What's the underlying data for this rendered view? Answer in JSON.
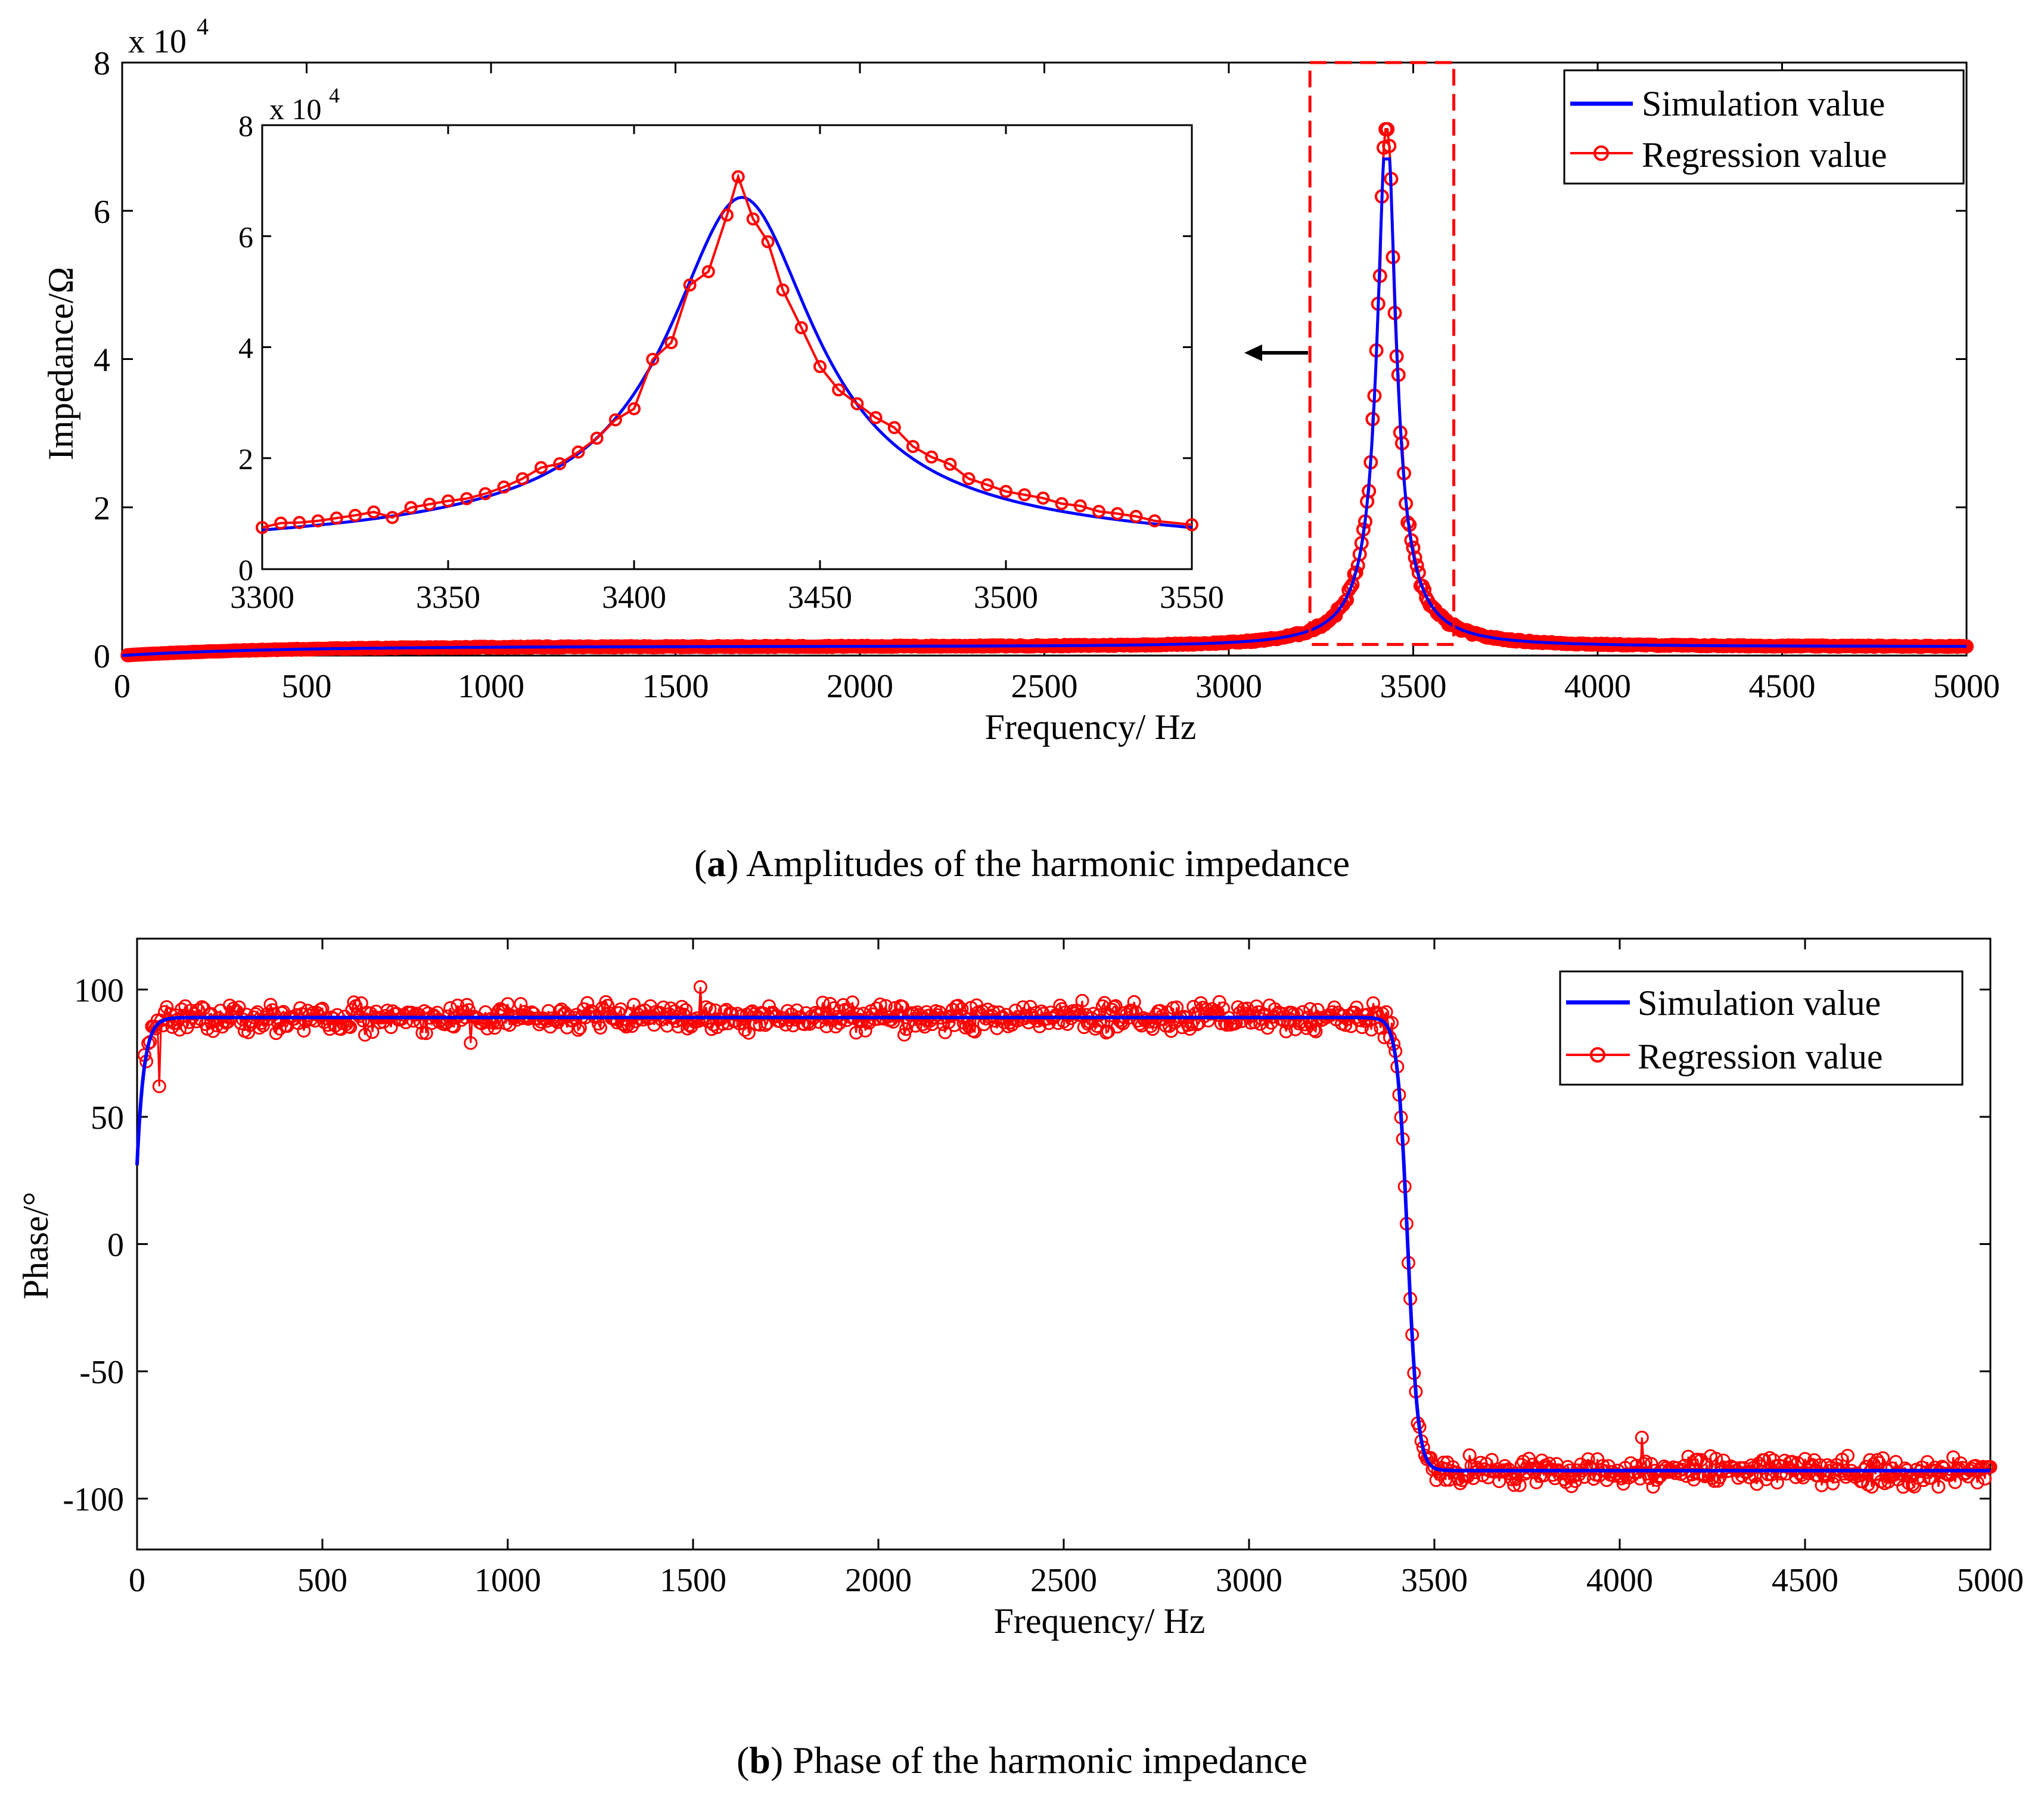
{
  "chart_data": [
    {
      "id": "a",
      "type": "line",
      "caption_label": "a",
      "caption_text": "Amplitudes of the harmonic impedance",
      "xlabel": "Frequency/ Hz",
      "ylabel": "Impedance/Ω",
      "xlim": [
        0,
        5000
      ],
      "ylim": [
        0,
        80000
      ],
      "xticks": [
        "0",
        "500",
        "1000",
        "1500",
        "2000",
        "2500",
        "3000",
        "3500",
        "4000",
        "4500",
        "5000"
      ],
      "yticks": [
        "0",
        "2",
        "4",
        "6",
        "8"
      ],
      "y_multiplier": "x 10",
      "y_multiplier_exp": "4",
      "legend": [
        "Simulation value",
        "Regression value"
      ],
      "legend_position": "top-right",
      "colors": {
        "simulation": "#0000ff",
        "regression": "#ff0000",
        "highlight_box": "#ff0000",
        "arrow": "#000000"
      },
      "series": [
        {
          "name": "Simulation value",
          "model": "resonance",
          "peak_frequency": 3428,
          "peak_value": 67000,
          "baseline_at_0Hz": 0,
          "value_at_3300": 7500,
          "value_at_3550": 8000
        },
        {
          "name": "Regression value",
          "model": "resonance_with_noise",
          "peak_value": 71000,
          "sample_step_hz": 5
        }
      ],
      "highlight_range_x": [
        3220,
        3610
      ],
      "highlight_range_y": [
        1500,
        80000
      ],
      "inset": {
        "xlim": [
          3300,
          3550
        ],
        "ylim": [
          0,
          80000
        ],
        "xticks": [
          "3300",
          "3350",
          "3400",
          "3450",
          "3500",
          "3550"
        ],
        "yticks": [
          "0",
          "2",
          "4",
          "6",
          "8"
        ],
        "y_multiplier": "x 10",
        "y_multiplier_exp": "4",
        "regression_points": {
          "x": [
            3300,
            3305,
            3310,
            3315,
            3320,
            3325,
            3330,
            3335,
            3340,
            3345,
            3350,
            3355,
            3360,
            3365,
            3370,
            3375,
            3380,
            3385,
            3390,
            3395,
            3400,
            3405,
            3410,
            3415,
            3420,
            3425,
            3428,
            3432,
            3436,
            3440,
            3445,
            3450,
            3455,
            3460,
            3465,
            3470,
            3475,
            3480,
            3485,
            3490,
            3495,
            3500,
            3505,
            3510,
            3515,
            3520,
            3525,
            3530,
            3535,
            3540,
            3550
          ],
          "y": [
            7500,
            8300,
            8400,
            8700,
            9200,
            9700,
            10300,
            9300,
            11100,
            11700,
            12300,
            12700,
            13600,
            14800,
            16300,
            18300,
            19000,
            21100,
            23600,
            26900,
            28900,
            37800,
            40800,
            51200,
            53600,
            63800,
            70700,
            63100,
            59000,
            50300,
            43500,
            36500,
            32300,
            29800,
            27300,
            25500,
            22100,
            20200,
            18900,
            16300,
            15200,
            14000,
            13400,
            12800,
            11800,
            11400,
            10400,
            10000,
            9500,
            8700,
            8000
          ]
        }
      }
    },
    {
      "id": "b",
      "type": "line",
      "caption_label": "b",
      "caption_text": "Phase of the harmonic impedance",
      "xlabel": "Frequency/ Hz",
      "ylabel": "Phase/°",
      "xlim": [
        0,
        5000
      ],
      "ylim": [
        -120,
        120
      ],
      "xticks": [
        "0",
        "500",
        "1000",
        "1500",
        "2000",
        "2500",
        "3000",
        "3500",
        "4000",
        "4500",
        "5000"
      ],
      "yticks": [
        "100",
        "50",
        "0",
        "-50",
        "-100"
      ],
      "ytick_values": [
        100,
        50,
        0,
        -50,
        -100
      ],
      "legend": [
        "Simulation value",
        "Regression value"
      ],
      "legend_position": "top-right",
      "colors": {
        "simulation": "#0000ff",
        "regression": "#ff0000"
      },
      "series": [
        {
          "name": "Simulation value",
          "model": "phase_transition",
          "start_value": 31,
          "plateau_high": 89,
          "plateau_low": -89,
          "transition_center_hz": 3428
        },
        {
          "name": "Regression value",
          "model": "phase_transition_with_noise",
          "noise_amplitude_deg": 5,
          "outliers": [
            {
              "x": 60,
              "y": 62
            },
            {
              "x": 900,
              "y": 79
            },
            {
              "x": 4060,
              "y": -76
            },
            {
              "x": 1520,
              "y": 101
            }
          ]
        }
      ]
    }
  ]
}
